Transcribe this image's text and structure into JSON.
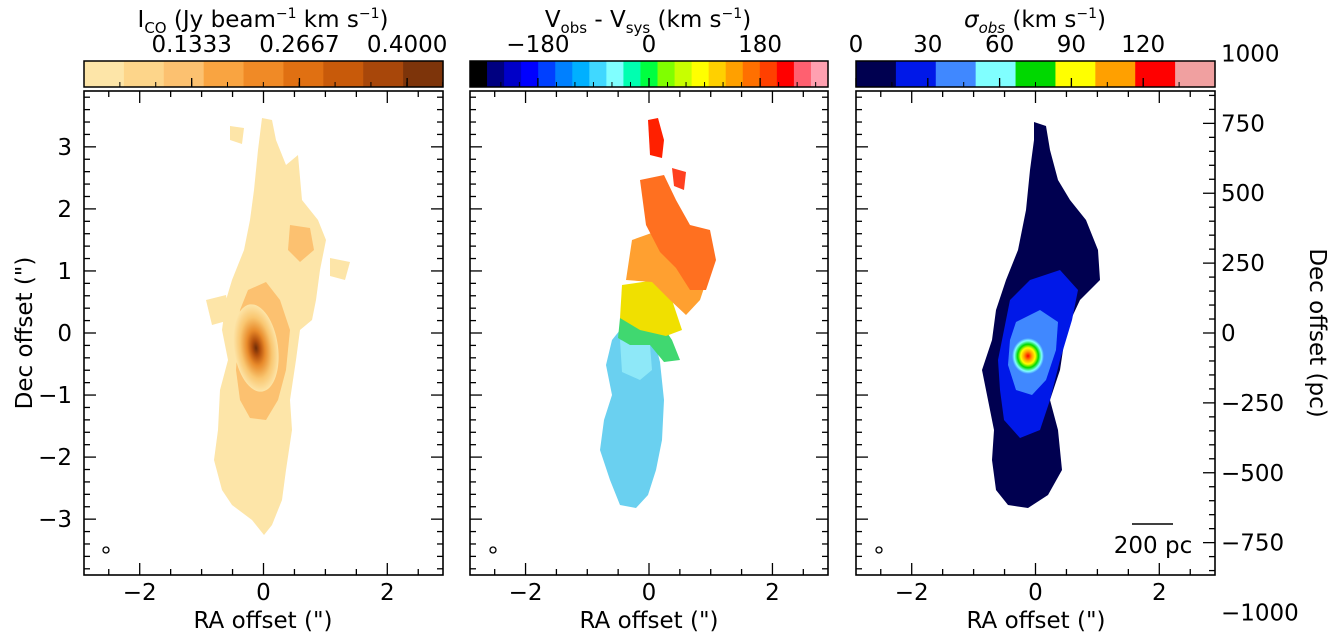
{
  "colorbars": {
    "intensity": {
      "title_main": "I",
      "title_sub": "CO",
      "title_unit": " (Jy beam",
      "title_exp": "−1",
      "title_tail": " km s",
      "title_exp2": "−1",
      "title_close": ")",
      "ticks": [
        "0.1333",
        "0.2667",
        "0.4000"
      ],
      "tick_values": [
        0.1333,
        0.2667,
        0.4
      ],
      "range": [
        0.0,
        0.4444
      ],
      "colors": [
        "#fde5a8",
        "#fdd58a",
        "#fcc170",
        "#f9a441",
        "#f08a26",
        "#e07012",
        "#c85a0a",
        "#a8470a",
        "#7d340a"
      ]
    },
    "velocity": {
      "title_v1": "V",
      "title_s1": "obs",
      "title_mid": " - V",
      "title_s2": "sys",
      "title_unit": " (km s",
      "title_exp": "−1",
      "title_close": ")",
      "ticks": [
        "−180",
        "0",
        "180"
      ],
      "tick_values": [
        -180,
        0,
        180
      ],
      "range": [
        -290,
        290
      ],
      "colors": [
        "#000000",
        "#000080",
        "#0000c8",
        "#0000ff",
        "#0040ff",
        "#0080ff",
        "#00b0ff",
        "#40d8ff",
        "#80ffff",
        "#00ffb0",
        "#00ff40",
        "#80ff00",
        "#c8ff00",
        "#ffff00",
        "#ffd000",
        "#ffa000",
        "#ff7000",
        "#ff4000",
        "#ff0000",
        "#ff6070",
        "#ffa0b0"
      ]
    },
    "dispersion": {
      "title_sigma": "σ",
      "title_sub": "obs",
      "title_unit": " (km s",
      "title_exp": "−1",
      "title_close": ")",
      "ticks": [
        "0",
        "30",
        "60",
        "90",
        "120"
      ],
      "tick_values": [
        0,
        30,
        60,
        90,
        120
      ],
      "range": [
        0,
        150
      ],
      "colors": [
        "#000050",
        "#0018e8",
        "#4088ff",
        "#80ffff",
        "#00d800",
        "#ffff00",
        "#ffa000",
        "#ff0000",
        "#f0a0a0"
      ]
    }
  },
  "panels": [
    {
      "name": "intensity-map",
      "xlabel": "RA offset (\")",
      "ylabel": "Dec offset (\")"
    },
    {
      "name": "velocity-map",
      "xlabel": "RA offset (\")",
      "ylabel": ""
    },
    {
      "name": "dispersion-map",
      "xlabel": "RA offset (\")",
      "ylabel": "",
      "ylabel_right": "Dec offset (pc)"
    }
  ],
  "scalebar": {
    "label": "200 pc"
  },
  "chart_data": {
    "type": "heatmap",
    "panels": 3,
    "x_axis": {
      "label": "RA offset (\")",
      "range": [
        -2.9,
        2.9
      ],
      "ticks": [
        -2,
        0,
        2
      ],
      "tick_labels": [
        "−2",
        "0",
        "2"
      ]
    },
    "y_axis": {
      "label": "Dec offset (\")",
      "range": [
        -3.9,
        3.9
      ],
      "ticks": [
        -3,
        -2,
        -1,
        0,
        1,
        2,
        3
      ],
      "tick_labels": [
        "−3",
        "−2",
        "−1",
        "0",
        "1",
        "2",
        "3"
      ]
    },
    "y_axis_right": {
      "label": "Dec offset (pc)",
      "ticks": [
        1000,
        750,
        500,
        250,
        0,
        -250,
        -500,
        -750,
        -1000
      ],
      "tick_labels": [
        "1000",
        "750",
        "500",
        "250",
        "0",
        "−250",
        "−500",
        "−750",
        "−1000"
      ],
      "pc_per_arcsec": 222
    },
    "colorbar_ranges": {
      "intensity": [
        0.0,
        0.4444
      ],
      "velocity": [
        -290,
        290
      ],
      "dispersion": [
        0,
        150
      ]
    }
  }
}
